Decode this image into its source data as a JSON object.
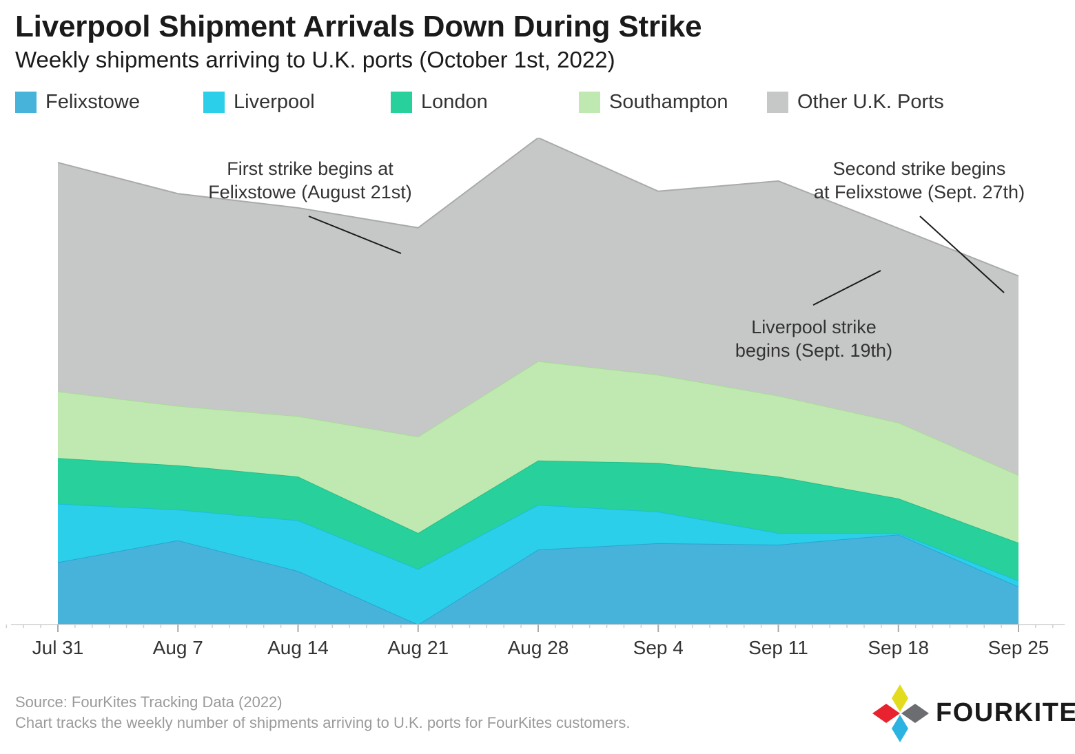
{
  "header": {
    "title": "Liverpool Shipment Arrivals Down During Strike",
    "subtitle": "Weekly shipments arriving to U.K. ports (October 1st, 2022)"
  },
  "legend": [
    {
      "label": "Felixstowe",
      "color": "#47b3da"
    },
    {
      "label": "Liverpool",
      "color": "#2bcfea"
    },
    {
      "label": "London",
      "color": "#28d09b"
    },
    {
      "label": "Southampton",
      "color": "#bfe9b0"
    },
    {
      "label": "Other U.K. Ports",
      "color": "#c6c8c7"
    }
  ],
  "chart_data": {
    "type": "area",
    "stacked": true,
    "categories": [
      "Jul 31",
      "Aug 7",
      "Aug 14",
      "Aug 21",
      "Aug 28",
      "Sep 4",
      "Sep 11",
      "Sep 18",
      "Sep 25"
    ],
    "ylim": [
      0,
      100
    ],
    "grid": false,
    "series": [
      {
        "name": "Felixstowe",
        "color": "#47b3da",
        "values": [
          12.8,
          17.3,
          11.0,
          0.0,
          15.4,
          16.7,
          16.4,
          18.5,
          7.8
        ]
      },
      {
        "name": "Liverpool",
        "color": "#2bcfea",
        "values": [
          12.0,
          6.3,
          10.4,
          11.4,
          9.2,
          6.5,
          2.4,
          0.3,
          1.2
        ]
      },
      {
        "name": "London",
        "color": "#28d09b",
        "values": [
          9.4,
          9.1,
          9.0,
          7.4,
          9.1,
          10.0,
          11.6,
          7.1,
          7.8
        ]
      },
      {
        "name": "Southampton",
        "color": "#bfe9b0",
        "values": [
          13.7,
          12.2,
          12.4,
          19.8,
          20.4,
          18.1,
          16.6,
          15.6,
          13.9
        ]
      },
      {
        "name": "Other U.K. Ports",
        "color": "#c6c8c7",
        "values": [
          47.0,
          43.6,
          42.8,
          42.9,
          45.9,
          37.7,
          44.1,
          39.9,
          40.9
        ]
      }
    ],
    "annotations": [
      {
        "text_line1": "First strike begins at",
        "text_line2": "Felixstowe (August 21st)"
      },
      {
        "text_line1": "Second strike begins",
        "text_line2": "at Felixstowe (Sept. 27th)"
      },
      {
        "text_line1": "Liverpool strike",
        "text_line2": "begins (Sept. 19th)"
      }
    ]
  },
  "footer": {
    "source": "Source: FourKites Tracking Data (2022)",
    "note": "Chart tracks the weekly number of shipments arriving to U.K. ports for FourKites customers."
  },
  "logo": {
    "text": "FOURKITES",
    "colors": [
      "#e8232f",
      "#e3dc1e",
      "#2db3e2",
      "#6b6d70"
    ]
  }
}
